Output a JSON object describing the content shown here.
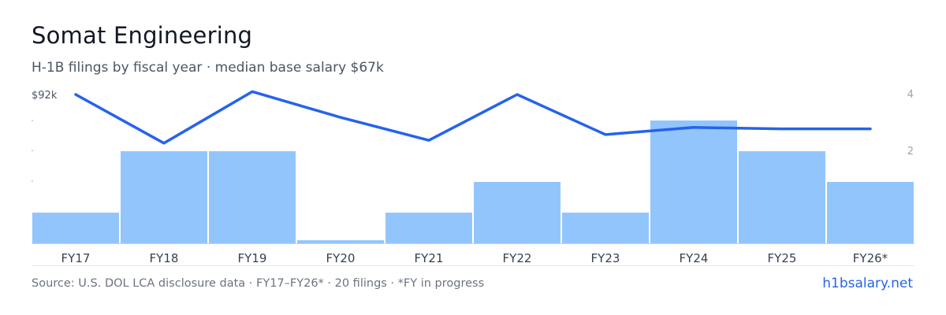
{
  "title": "Somat Engineering",
  "subtitle": "H-1B filings by fiscal year · median base salary $67k",
  "footer": {
    "source": "Source: U.S. DOL LCA disclosure data · FY17–FY26* · 20 filings · *FY in progress",
    "brand": "h1bsalary.net"
  },
  "colors": {
    "bar": "#93c5fd",
    "line": "#2563eb",
    "axis_text": "#374151",
    "right_axis_text": "#9ca3af",
    "baseline": "#d1d5db"
  },
  "chart_data": {
    "type": "bar",
    "categories": [
      "FY17",
      "FY18",
      "FY19",
      "FY20",
      "FY21",
      "FY22",
      "FY23",
      "FY24",
      "FY25",
      "FY26*"
    ],
    "series": [
      {
        "type": "bar",
        "axis": "right",
        "values": [
          1,
          3,
          3,
          0.1,
          1,
          2,
          1,
          4,
          3,
          2
        ]
      },
      {
        "type": "line",
        "axis": "left",
        "values": [
          92,
          75,
          93,
          84,
          76,
          92,
          78,
          80.5,
          80,
          80
        ]
      }
    ],
    "y_left": {
      "top_label": "$92k",
      "ylim": [
        40,
        92
      ]
    },
    "y_right": {
      "ticks": [
        2,
        4
      ],
      "ylim": [
        0,
        4
      ]
    }
  }
}
